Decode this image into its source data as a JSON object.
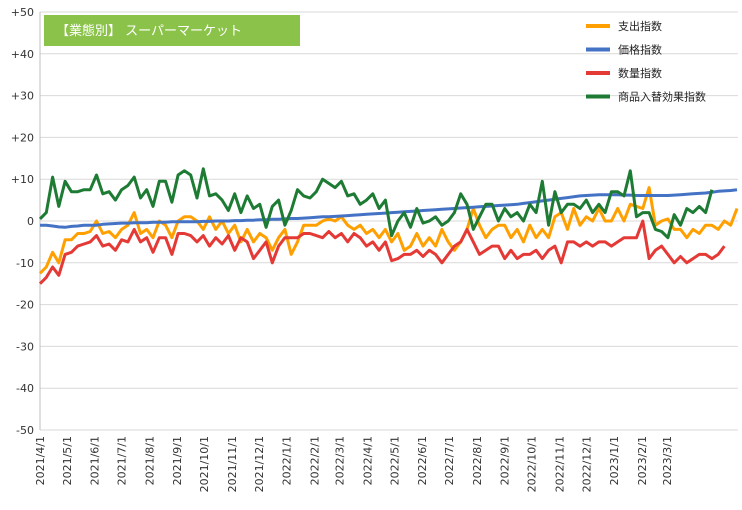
{
  "chart_data": {
    "type": "line",
    "title": "【業態別】 スーパーマーケット",
    "ylim": [
      -50,
      50
    ],
    "yticks": [
      50,
      40,
      30,
      20,
      10,
      0,
      -10,
      -20,
      -30,
      -40,
      -50
    ],
    "ytick_labels": [
      "+50",
      "+40",
      "+30",
      "+20",
      "+10",
      "0",
      "-10",
      "-20",
      "-30",
      "-40",
      "-50"
    ],
    "grid": true,
    "legend_position": "top-right",
    "x_start": "2021-04-01",
    "x_interval": "week",
    "x_tick_labels": [
      "2021/4/1",
      "2021/5/1",
      "2021/6/1",
      "2021/7/1",
      "2021/8/1",
      "2021/9/1",
      "2021/10/1",
      "2021/11/1",
      "2021/12/1",
      "2022/1/1",
      "2022/2/1",
      "2022/3/1",
      "2022/4/1",
      "2022/5/1",
      "2022/6/1",
      "2022/7/1",
      "2022/8/1",
      "2022/9/1",
      "2022/10/1",
      "2022/11/1",
      "2022/12/1",
      "2023/1/1",
      "2023/2/1",
      "2023/3/1"
    ],
    "series": [
      {
        "name": "支出指数",
        "color": "#ffa000",
        "values": [
          -12.5,
          -11,
          -7.5,
          -10,
          -4.5,
          -4.5,
          -3,
          -3,
          -2.5,
          0,
          -3,
          -2.5,
          -4,
          -2,
          -1,
          2,
          -3,
          -2,
          -4,
          0,
          -1,
          -4,
          0,
          1,
          1,
          0,
          -2,
          1,
          -2,
          0,
          -3,
          -1,
          -5,
          -2,
          -5,
          -3,
          -4,
          -7,
          -4,
          -2,
          -8,
          -5,
          -1,
          -1,
          -1,
          0,
          0.5,
          0,
          1,
          -1,
          -2,
          -1,
          -3,
          -2,
          -4,
          -2,
          -5,
          -3,
          -7,
          -6,
          -3,
          -6,
          -4,
          -6,
          -2,
          -5,
          -7,
          -5,
          -2,
          3,
          -1,
          -4,
          -2,
          -1,
          -1,
          -4,
          -2,
          -5,
          -1,
          -4,
          -2,
          -4,
          1,
          2,
          -2,
          3,
          -1,
          1,
          0,
          3,
          0,
          0,
          3,
          0,
          4,
          3.5,
          3,
          8,
          -1,
          0,
          0.5,
          -2,
          -2,
          -4,
          -2,
          -3,
          -1,
          -1,
          -2,
          0,
          -1,
          3
        ]
      },
      {
        "name": "価格指数",
        "color": "#4472c4",
        "values": [
          -1,
          -1,
          -1.2,
          -1.4,
          -1.5,
          -1.3,
          -1.2,
          -1,
          -1,
          -1,
          -0.8,
          -0.7,
          -0.6,
          -0.5,
          -0.5,
          -0.4,
          -0.4,
          -0.4,
          -0.3,
          -0.3,
          -0.3,
          -0.2,
          -0.2,
          -0.2,
          -0.2,
          -0.2,
          -0.1,
          -0.1,
          0,
          0,
          0,
          0.1,
          0.1,
          0.2,
          0.2,
          0.3,
          0.3,
          0.4,
          0.4,
          0.5,
          0.6,
          0.6,
          0.7,
          0.8,
          0.9,
          1,
          1,
          1.1,
          1.2,
          1.3,
          1.4,
          1.5,
          1.6,
          1.7,
          1.8,
          1.9,
          2,
          2.1,
          2.2,
          2.3,
          2.4,
          2.5,
          2.6,
          2.7,
          2.8,
          2.9,
          3,
          3.1,
          3.2,
          3.3,
          3.4,
          3.5,
          3.6,
          3.7,
          3.8,
          3.9,
          4,
          4.2,
          4.4,
          4.6,
          4.8,
          5,
          5.2,
          5.4,
          5.6,
          5.8,
          6,
          6.1,
          6.2,
          6.3,
          6.3,
          6.3,
          6.3,
          6.2,
          6.2,
          6.1,
          6.1,
          6.1,
          6.1,
          6.1,
          6.1,
          6.2,
          6.3,
          6.4,
          6.5,
          6.6,
          6.7,
          6.9,
          7.1,
          7.2,
          7.3,
          7.5
        ]
      },
      {
        "name": "数量指数",
        "color": "#e53935",
        "values": [
          -15,
          -13.5,
          -11,
          -13,
          -8,
          -7.5,
          -6,
          -5.5,
          -5,
          -3.5,
          -6,
          -5.5,
          -7,
          -4.5,
          -5,
          -2,
          -5,
          -4,
          -7.5,
          -4,
          -4,
          -8,
          -3,
          -3,
          -3.5,
          -5,
          -3.5,
          -6,
          -4,
          -5.5,
          -3.5,
          -7,
          -4,
          -5,
          -9,
          -7,
          -5,
          -10,
          -6,
          -4,
          -4,
          -4,
          -3,
          -3,
          -3.5,
          -4,
          -2.5,
          -4,
          -3,
          -5,
          -3,
          -4,
          -6,
          -5,
          -7,
          -5,
          -9.5,
          -9,
          -8,
          -8,
          -7,
          -8.5,
          -7,
          -8,
          -10,
          -8,
          -6,
          -5,
          -2,
          -5,
          -8,
          -7,
          -6,
          -6,
          -9,
          -7,
          -9,
          -8,
          -8,
          -7,
          -9,
          -7,
          -6,
          -10,
          -5,
          -5,
          -6,
          -5,
          -6,
          -5,
          -5,
          -6,
          -5,
          -4,
          -4,
          -4,
          0,
          -9,
          -7,
          -6,
          -8,
          -10,
          -8.5,
          -10,
          -9,
          -8,
          -8,
          -9,
          -8,
          -6
        ]
      },
      {
        "name": "商品入替効果指数",
        "color": "#1e7b34",
        "values": [
          0.5,
          2,
          10.5,
          3.5,
          9.5,
          7,
          7,
          7.5,
          7.5,
          11,
          6.5,
          7,
          5,
          7.5,
          8.5,
          10.5,
          5.5,
          7.5,
          3.5,
          9.5,
          9.5,
          4.5,
          11,
          12,
          11,
          5.5,
          12.5,
          6,
          6.5,
          5,
          2.5,
          6.5,
          2,
          6,
          3,
          4,
          -1.5,
          3.5,
          5,
          -1,
          2.5,
          7.5,
          6,
          5.5,
          7,
          10,
          9,
          8,
          9.5,
          6,
          6.5,
          4,
          5,
          6.5,
          3,
          5,
          -3.5,
          0,
          2,
          -1.5,
          3,
          -0.5,
          0,
          1,
          -1,
          0,
          2,
          6.5,
          4,
          -2,
          1,
          4,
          4,
          0,
          3,
          1,
          2,
          0,
          4,
          2,
          9.5,
          -1,
          7,
          2,
          4,
          4,
          3,
          5,
          2,
          4,
          2,
          7,
          7,
          6,
          12,
          1,
          2,
          2,
          -2,
          -2.5,
          -4,
          1.5,
          -1,
          3,
          2,
          3.5,
          2,
          7.5
        ]
      }
    ]
  }
}
